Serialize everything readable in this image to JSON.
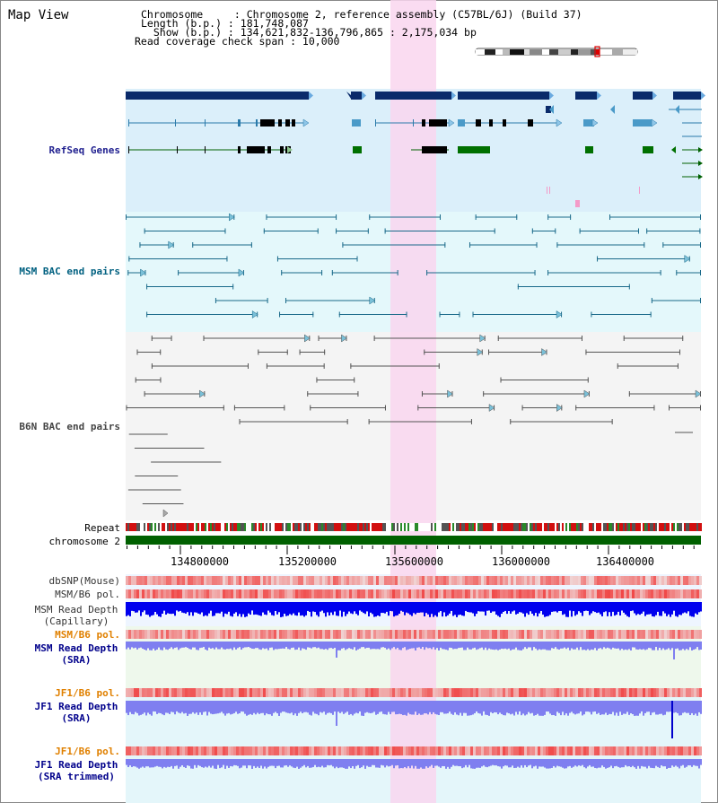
{
  "app": {
    "title": "Map View"
  },
  "header": {
    "rows": [
      {
        "key": "Chromosome",
        "value": "Chromosome 2, reference assembly (C57BL/6J) (Build 37)"
      },
      {
        "key": "Length (b.p.)",
        "value": "181,748,087"
      },
      {
        "key": "Show (b.p.)",
        "value": "134,621,832-136,796,865 : 2,175,034 bp"
      },
      {
        "key": "Read coverage check span",
        "value": "10,000"
      }
    ],
    "line1": "Chromosome     : Chromosome 2, reference assembly (C57BL/6J) (Build 37)",
    "line2": "Length (b.p.) : 181,748,087",
    "line3": "  Show (b.p.) : 134,621,832-136,796,865 : 2,175,034 bp",
    "line4": "Read coverage check span : 10,000"
  },
  "tracks": {
    "refseq": {
      "label": "RefSeq Genes",
      "color": "#1f1f8f"
    },
    "msm_bac": {
      "label": "MSM BAC end pairs",
      "color": "#006080"
    },
    "b6n_bac": {
      "label": "B6N BAC end pairs",
      "color": "#444444"
    },
    "repeat": {
      "label": "Repeat"
    },
    "chromosome": {
      "label": "chromosome 2"
    },
    "dbsnp": {
      "label": "dbSNP(Mouse)"
    },
    "msm_b6_pol_cap": {
      "label": "MSM/B6 pol."
    },
    "msm_read_depth_cap": {
      "line1": "MSM Read Depth",
      "line2": "(Capillary)"
    },
    "msm_b6_pol_sra": {
      "label": "MSM/B6 pol.",
      "color": "#e08000"
    },
    "msm_read_depth_sra": {
      "line1": "MSM Read Depth",
      "line2": "(SRA)",
      "color": "#00008b"
    },
    "jf1_b6_pol_sra": {
      "label": "JF1/B6 pol.",
      "color": "#e08000"
    },
    "jf1_read_depth_sra": {
      "line1": "JF1 Read Depth",
      "line2": "(SRA)",
      "color": "#00008b"
    },
    "jf1_b6_pol_trim": {
      "label": "JF1/B6 pol.",
      "color": "#e08000"
    },
    "jf1_read_depth_trim": {
      "line1": "JF1 Read Depth",
      "line2": "(SRA trimmed)",
      "color": "#00008b"
    }
  },
  "axis": {
    "ticks": [
      "134800000",
      "135200000",
      "135600000",
      "136000000",
      "136400000"
    ],
    "range_bp": [
      134621832,
      136796865
    ]
  },
  "highlight": {
    "color": "#f9d6ee"
  },
  "colors": {
    "refseq_bg": "#dbeffa",
    "msm_bg": "#e4f8fb",
    "b6n_bg": "#f4f4f4",
    "depth_bg_blue": "#eef5ff",
    "depth_bg_green": "#eef8ec",
    "chromosome_bar": "#006000",
    "capillary_depth": "#0000ee",
    "sra_depth": "#7f7ff0"
  }
}
